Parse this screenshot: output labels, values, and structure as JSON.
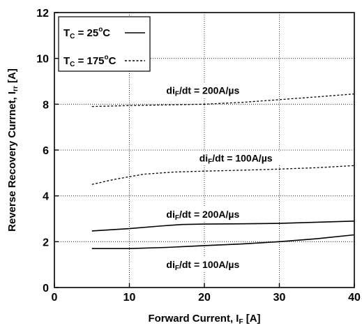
{
  "chart_data": {
    "type": "line",
    "xlabel": "Forward Current, I",
    "xlabel_sub": "F",
    "xlabel_unit": " [A]",
    "ylabel": "Reverse Recovery Currnet, I",
    "ylabel_sub": "rr",
    "ylabel_unit": " [A]",
    "xlim": [
      0,
      40
    ],
    "ylim": [
      0,
      12
    ],
    "xticks": [
      0,
      10,
      20,
      30,
      40
    ],
    "yticks": [
      0,
      2,
      4,
      6,
      8,
      10,
      12
    ],
    "grid": true,
    "grid_style": "dotted",
    "legend": {
      "placement": "top-left",
      "entries": [
        {
          "label": "T",
          "sub": "C",
          "value": " = 25",
          "sup": "o",
          "unit": "C",
          "style": "solid"
        },
        {
          "label": "T",
          "sub": "C",
          "value": " = 175",
          "sup": "o",
          "unit": "C",
          "style": "dashed"
        }
      ]
    },
    "series": [
      {
        "condition": "200A/µs",
        "temperature": "175°C",
        "style": "dashed",
        "x": [
          5,
          10,
          15,
          20,
          25,
          30,
          35,
          40
        ],
        "y": [
          7.9,
          7.94,
          7.97,
          8.0,
          8.08,
          8.2,
          8.32,
          8.45
        ]
      },
      {
        "condition": "100A/µs",
        "temperature": "175°C",
        "style": "dashed",
        "x": [
          5,
          8,
          12,
          16,
          20,
          25,
          30,
          35,
          40
        ],
        "y": [
          4.5,
          4.72,
          4.95,
          5.04,
          5.08,
          5.12,
          5.17,
          5.23,
          5.32
        ]
      },
      {
        "condition": "200A/µs",
        "temperature": "25°C",
        "style": "solid",
        "x": [
          5,
          10,
          14,
          17,
          20,
          25,
          30,
          35,
          40
        ],
        "y": [
          2.47,
          2.57,
          2.68,
          2.75,
          2.77,
          2.78,
          2.8,
          2.85,
          2.9
        ]
      },
      {
        "condition": "100A/µs",
        "temperature": "25°C",
        "style": "solid",
        "x": [
          5,
          10,
          15,
          20,
          25,
          30,
          35,
          40
        ],
        "y": [
          1.7,
          1.7,
          1.75,
          1.83,
          1.9,
          2.0,
          2.13,
          2.3
        ]
      }
    ],
    "annotations": [
      {
        "prefix": "di",
        "sub": "F",
        "suffix": "/dt = 200A/µs",
        "x": 19.8,
        "y": 8.45
      },
      {
        "prefix": "di",
        "sub": "F",
        "suffix": "/dt = 100A/µs",
        "x": 24.2,
        "y": 5.5
      },
      {
        "prefix": "di",
        "sub": "F",
        "suffix": "/dt = 200A/µs",
        "x": 19.8,
        "y": 3.05
      },
      {
        "prefix": "di",
        "sub": "F",
        "suffix": "/dt = 100A/µs",
        "x": 19.8,
        "y": 0.85
      }
    ]
  }
}
